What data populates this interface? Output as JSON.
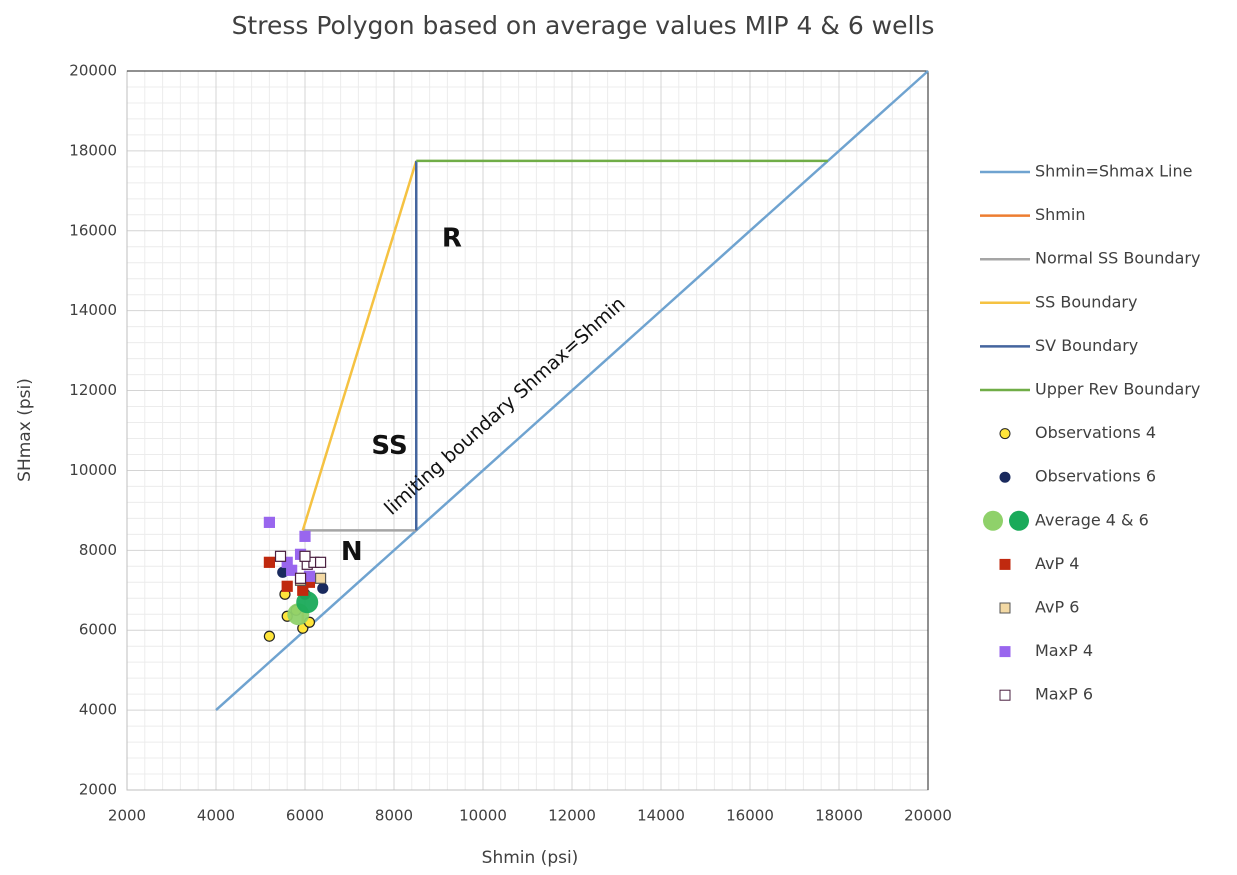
{
  "chart_data": {
    "type": "scatter",
    "title": "Stress Polygon based on average values MIP 4 & 6 wells",
    "x_label": "Shmin (psi)",
    "y_label": "SHmax (psi)",
    "xlim": [
      2000,
      20000
    ],
    "ylim": [
      2000,
      20000
    ],
    "xticks": [
      2000,
      4000,
      6000,
      8000,
      10000,
      12000,
      14000,
      16000,
      18000,
      20000
    ],
    "yticks": [
      2000,
      4000,
      6000,
      8000,
      10000,
      12000,
      14000,
      16000,
      18000,
      20000
    ],
    "grid": true,
    "minor_grid": true,
    "legend": "right",
    "annotations": [
      "R",
      "SS",
      "N",
      "limiting boundary Shmax=Shmin"
    ],
    "series": [
      {
        "name": "Shmin=Shmax Line",
        "kind": "line",
        "color": "#6fa3d0",
        "x": [
          4000,
          20000
        ],
        "values": [
          4000,
          20000
        ]
      },
      {
        "name": "Shmin",
        "kind": "line",
        "color": "#ed7d31",
        "x": [
          5950,
          5950
        ],
        "values": [
          6050,
          6500
        ]
      },
      {
        "name": "Normal SS Boundary",
        "kind": "line",
        "color": "#a5a5a5",
        "x": [
          5950,
          8500
        ],
        "values": [
          8500,
          8500
        ]
      },
      {
        "name": "SS Boundary",
        "kind": "line",
        "color": "#f5c242",
        "x": [
          5950,
          8500
        ],
        "values": [
          8500,
          17750
        ]
      },
      {
        "name": "SV Boundary",
        "kind": "line",
        "color": "#44659e",
        "x": [
          8500,
          8500
        ],
        "values": [
          8500,
          17750
        ]
      },
      {
        "name": "Upper Rev Boundary",
        "kind": "line",
        "color": "#70ad47",
        "x": [
          8500,
          17750
        ],
        "values": [
          17750,
          17750
        ]
      },
      {
        "name": "Observations 4",
        "kind": "marker",
        "marker": "circle",
        "color": "#ffe53b",
        "outline": "#222222",
        "x": [
          5200,
          5550,
          5600,
          5950,
          6100,
          5800
        ],
        "values": [
          5850,
          6900,
          6350,
          6050,
          6200,
          6500
        ]
      },
      {
        "name": "Observations 6",
        "kind": "marker",
        "marker": "circle",
        "color": "#1a2a5e",
        "x": [
          5500,
          6400,
          6000
        ],
        "values": [
          7450,
          7050,
          6900
        ]
      },
      {
        "name": "Average 4 & 6",
        "kind": "marker",
        "marker": "big-circle",
        "color": "#8fd16a",
        "colors": [
          "#8fd16a",
          "#1aaa5a"
        ],
        "x": [
          5850,
          6050
        ],
        "values": [
          6400,
          6700
        ]
      },
      {
        "name": "AvP 4",
        "kind": "marker",
        "marker": "square",
        "color": "#c0290f",
        "x": [
          5200,
          5600,
          5950,
          6100
        ],
        "values": [
          7700,
          7100,
          7000,
          7200
        ]
      },
      {
        "name": "AvP 6",
        "kind": "marker",
        "marker": "square",
        "color": "#f3d9a4",
        "outline": "#555555",
        "x": [
          6350,
          5900
        ],
        "values": [
          7300,
          7250
        ]
      },
      {
        "name": "MaxP 4",
        "kind": "marker",
        "marker": "square",
        "color": "#9966ee",
        "x": [
          5200,
          6000,
          5600,
          5900,
          6100,
          5700
        ],
        "values": [
          8700,
          8350,
          7700,
          7900,
          7350,
          7500
        ]
      },
      {
        "name": "MaxP 6",
        "kind": "marker",
        "marker": "square",
        "color": "#ffffff",
        "outline": "#4a2040",
        "x": [
          5450,
          5900,
          6050,
          6200,
          6350,
          6000
        ],
        "values": [
          7850,
          7300,
          7650,
          7700,
          7700,
          7850
        ]
      }
    ]
  }
}
